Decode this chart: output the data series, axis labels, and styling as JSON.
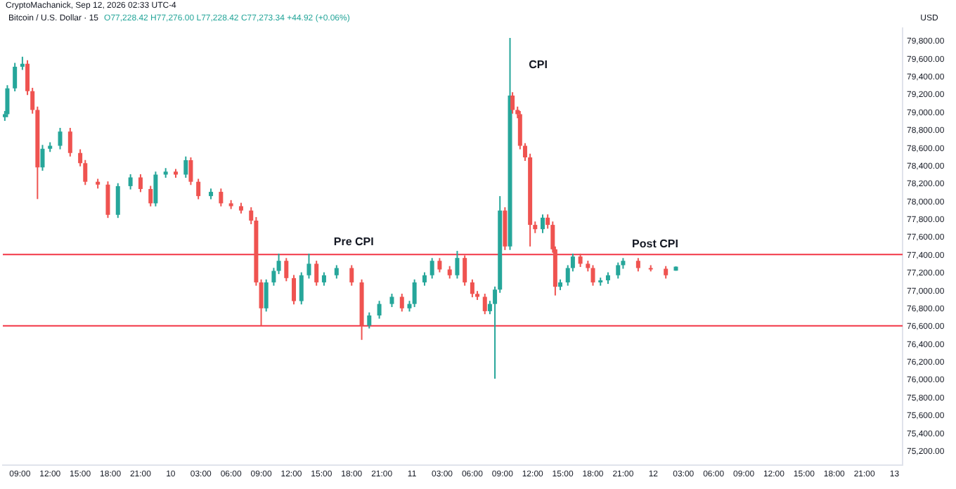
{
  "chart_data": {
    "type": "candlestick",
    "title": "Bitcoin / U.S. Dollar · 15",
    "ylabel": "USD",
    "annotations": [
      "CryptoMachanick, Sep 12, 2026 02:33 UTC-4",
      "O77,228.42 H77,276.00 L77,228.42 C77,273.34 +44.92 (+0.06%)",
      "Pre CPI",
      "CPI",
      "Post CPI"
    ],
    "x": [
      "2026-09-09T07:30",
      "2026-09-09T07:45",
      "2026-09-09T08:30",
      "2026-09-09T09:15",
      "2026-09-09T09:45",
      "2026-09-09T10:15",
      "2026-09-09T10:45",
      "2026-09-09T11:15",
      "2026-09-09T12:00",
      "2026-09-09T13:00",
      "2026-09-09T14:00",
      "2026-09-09T15:00",
      "2026-09-09T15:30",
      "2026-09-09T16:45",
      "2026-09-09T17:45",
      "2026-09-09T18:45",
      "2026-09-09T20:00",
      "2026-09-09T21:00",
      "2026-09-09T22:00",
      "2026-09-09T22:30",
      "2026-09-09T23:30",
      "2026-09-10T00:30",
      "2026-09-10T01:30",
      "2026-09-10T02:00",
      "2026-09-10T02:45",
      "2026-09-10T04:00",
      "2026-09-10T05:00",
      "2026-09-10T06:00",
      "2026-09-10T07:00",
      "2026-09-10T08:00",
      "2026-09-10T08:30",
      "2026-09-10T09:00",
      "2026-09-10T09:30",
      "2026-09-10T10:15",
      "2026-09-10T10:45",
      "2026-09-10T11:30",
      "2026-09-10T12:15",
      "2026-09-10T13:00",
      "2026-09-10T13:45",
      "2026-09-10T14:30",
      "2026-09-10T15:15",
      "2026-09-10T16:30",
      "2026-09-10T18:00",
      "2026-09-10T19:00",
      "2026-09-10T19:45",
      "2026-09-10T20:45",
      "2026-09-10T22:00",
      "2026-09-10T23:00",
      "2026-09-10T23:45",
      "2026-09-11T00:15",
      "2026-09-11T01:15",
      "2026-09-11T02:00",
      "2026-09-11T02:45",
      "2026-09-11T03:45",
      "2026-09-11T04:30",
      "2026-09-11T05:15",
      "2026-09-11T06:00",
      "2026-09-11T06:30",
      "2026-09-11T07:15",
      "2026-09-11T07:45",
      "2026-09-11T08:15",
      "2026-09-11T08:45",
      "2026-09-11T09:15",
      "2026-09-11T09:45",
      "2026-09-11T10:00",
      "2026-09-11T10:30",
      "2026-09-11T10:45",
      "2026-09-11T11:15",
      "2026-09-11T11:45",
      "2026-09-11T12:15",
      "2026-09-11T13:00",
      "2026-09-11T13:30",
      "2026-09-11T14:00",
      "2026-09-11T14:15",
      "2026-09-11T14:45",
      "2026-09-11T15:30",
      "2026-09-11T16:00",
      "2026-09-11T16:45",
      "2026-09-11T17:30",
      "2026-09-11T18:00",
      "2026-09-11T18:45",
      "2026-09-11T19:30",
      "2026-09-11T20:30",
      "2026-09-11T21:00",
      "2026-09-11T22:30",
      "2026-09-11T23:45",
      "2026-09-12T01:15",
      "2026-09-12T02:15"
    ],
    "ohlc": [
      [
        78950,
        79020,
        78910,
        78984
      ],
      [
        78984,
        79310,
        78950,
        79274
      ],
      [
        79274,
        79560,
        79240,
        79516
      ],
      [
        79516,
        79629,
        79480,
        79550
      ],
      [
        79550,
        79590,
        79200,
        79242
      ],
      [
        79242,
        79280,
        78990,
        79032
      ],
      [
        79032,
        79070,
        78032,
        78387
      ],
      [
        78387,
        78640,
        78350,
        78597
      ],
      [
        78597,
        78670,
        78560,
        78629
      ],
      [
        78629,
        78830,
        78590,
        78790
      ],
      [
        78790,
        78830,
        78510,
        78548
      ],
      [
        78548,
        78590,
        78400,
        78435
      ],
      [
        78435,
        78470,
        78190,
        78226
      ],
      [
        78226,
        78260,
        78150,
        78194
      ],
      [
        78194,
        78230,
        77820,
        77855
      ],
      [
        77855,
        78210,
        77820,
        78177
      ],
      [
        78177,
        78310,
        78140,
        78274
      ],
      [
        78274,
        78310,
        78110,
        78145
      ],
      [
        78145,
        78180,
        77950,
        77984
      ],
      [
        77984,
        78340,
        77950,
        78306
      ],
      [
        78306,
        78380,
        78270,
        78339
      ],
      [
        78339,
        78370,
        78270,
        78306
      ],
      [
        78306,
        78510,
        78270,
        78468
      ],
      [
        78468,
        78500,
        78190,
        78226
      ],
      [
        78226,
        78260,
        78030,
        78065
      ],
      [
        78065,
        78150,
        78030,
        78113
      ],
      [
        78113,
        78150,
        77950,
        77984
      ],
      [
        77984,
        78020,
        77920,
        77952
      ],
      [
        77952,
        77990,
        77870,
        77903
      ],
      [
        77903,
        77940,
        77750,
        77790
      ],
      [
        77790,
        77830,
        77060,
        77097
      ],
      [
        77097,
        77130,
        76613,
        76806
      ],
      [
        76806,
        77130,
        76770,
        77097
      ],
      [
        77097,
        77260,
        77060,
        77226
      ],
      [
        77226,
        77420,
        77190,
        77339
      ],
      [
        77339,
        77370,
        77110,
        77145
      ],
      [
        77145,
        77180,
        76850,
        76887
      ],
      [
        76887,
        77210,
        76850,
        77177
      ],
      [
        77177,
        77420,
        77140,
        77306
      ],
      [
        77306,
        77340,
        77060,
        77097
      ],
      [
        77097,
        77210,
        77060,
        77177
      ],
      [
        77177,
        77290,
        77140,
        77258
      ],
      [
        77258,
        77290,
        77060,
        77097
      ],
      [
        77097,
        77130,
        76452,
        76613
      ],
      [
        76613,
        76760,
        76580,
        76726
      ],
      [
        76726,
        76890,
        76690,
        76855
      ],
      [
        76855,
        76970,
        76820,
        76935
      ],
      [
        76935,
        76970,
        76770,
        76806
      ],
      [
        76806,
        76890,
        76770,
        76855
      ],
      [
        76855,
        77130,
        76820,
        77097
      ],
      [
        77097,
        77210,
        77060,
        77177
      ],
      [
        77177,
        77370,
        77140,
        77339
      ],
      [
        77339,
        77370,
        77210,
        77242
      ],
      [
        77242,
        77280,
        77140,
        77177
      ],
      [
        77177,
        77450,
        77140,
        77371
      ],
      [
        77371,
        77400,
        77060,
        77097
      ],
      [
        77097,
        77130,
        76930,
        76968
      ],
      [
        76968,
        77000,
        76900,
        76935
      ],
      [
        76935,
        76970,
        76740,
        76774
      ],
      [
        76774,
        76890,
        76740,
        76855
      ],
      [
        76855,
        77050,
        76016,
        77016
      ],
      [
        77016,
        78065,
        76980,
        77903
      ],
      [
        77903,
        77940,
        77460,
        77500
      ],
      [
        77500,
        79839,
        77460,
        79194
      ],
      [
        79194,
        79230,
        78990,
        79032
      ],
      [
        79032,
        79070,
        78940,
        78984
      ],
      [
        78984,
        79020,
        78590,
        78629
      ],
      [
        78629,
        78660,
        78460,
        78500
      ],
      [
        78500,
        78540,
        77500,
        77742
      ],
      [
        77742,
        77780,
        77650,
        77694
      ],
      [
        77694,
        77860,
        77650,
        77823
      ],
      [
        77823,
        77860,
        77700,
        77742
      ],
      [
        77742,
        77780,
        77430,
        77468
      ],
      [
        77468,
        77500,
        76950,
        77048
      ],
      [
        77048,
        77130,
        77010,
        77097
      ],
      [
        77097,
        77290,
        77060,
        77258
      ],
      [
        77258,
        77420,
        77220,
        77387
      ],
      [
        77387,
        77420,
        77270,
        77306
      ],
      [
        77306,
        77340,
        77220,
        77258
      ],
      [
        77258,
        77290,
        77060,
        77097
      ],
      [
        77097,
        77150,
        77060,
        77120
      ],
      [
        77120,
        77210,
        77080,
        77177
      ],
      [
        77177,
        77320,
        77140,
        77290
      ],
      [
        77290,
        77370,
        77250,
        77339
      ],
      [
        77339,
        77370,
        77220,
        77258
      ],
      [
        77258,
        77290,
        77220,
        77250
      ],
      [
        77250,
        77280,
        77140,
        77177
      ],
      [
        77228.42,
        77276,
        77228.42,
        77273.34
      ]
    ],
    "xlim": [
      "2026-09-09T07:18",
      "2026-09-13T00:48"
    ],
    "xticks": [
      {
        "value": "2026-09-09T09:00",
        "label": "09:00"
      },
      {
        "value": "2026-09-09T12:00",
        "label": "12:00"
      },
      {
        "value": "2026-09-09T15:00",
        "label": "15:00"
      },
      {
        "value": "2026-09-09T18:00",
        "label": "18:00"
      },
      {
        "value": "2026-09-09T21:00",
        "label": "21:00"
      },
      {
        "value": "2026-09-10",
        "label": "10"
      },
      {
        "value": "2026-09-10T03:00",
        "label": "03:00"
      },
      {
        "value": "2026-09-10T06:00",
        "label": "06:00"
      },
      {
        "value": "2026-09-10T09:00",
        "label": "09:00"
      },
      {
        "value": "2026-09-10T12:00",
        "label": "12:00"
      },
      {
        "value": "2026-09-10T15:00",
        "label": "15:00"
      },
      {
        "value": "2026-09-10T18:00",
        "label": "18:00"
      },
      {
        "value": "2026-09-10T21:00",
        "label": "21:00"
      },
      {
        "value": "2026-09-11",
        "label": "11"
      },
      {
        "value": "2026-09-11T03:00",
        "label": "03:00"
      },
      {
        "value": "2026-09-11T06:00",
        "label": "06:00"
      },
      {
        "value": "2026-09-11T09:00",
        "label": "09:00"
      },
      {
        "value": "2026-09-11T12:00",
        "label": "12:00"
      },
      {
        "value": "2026-09-11T15:00",
        "label": "15:00"
      },
      {
        "value": "2026-09-11T18:00",
        "label": "18:00"
      },
      {
        "value": "2026-09-11T21:00",
        "label": "21:00"
      },
      {
        "value": "2026-09-12",
        "label": "12"
      },
      {
        "value": "2026-09-12T03:00",
        "label": "03:00"
      },
      {
        "value": "2026-09-12T06:00",
        "label": "06:00"
      },
      {
        "value": "2026-09-12T09:00",
        "label": "09:00"
      },
      {
        "value": "2026-09-12T12:00",
        "label": "12:00"
      },
      {
        "value": "2026-09-12T15:00",
        "label": "15:00"
      },
      {
        "value": "2026-09-12T18:00",
        "label": "18:00"
      },
      {
        "value": "2026-09-12T21:00",
        "label": "21:00"
      },
      {
        "value": "2026-09-13",
        "label": "13"
      }
    ],
    "ylim": [
      75050,
      79950
    ],
    "yticks": [
      {
        "value": 75200,
        "label": "75,200.00"
      },
      {
        "value": 75400,
        "label": "75,400.00"
      },
      {
        "value": 75600,
        "label": "75,600.00"
      },
      {
        "value": 75800,
        "label": "75,800.00"
      },
      {
        "value": 76000,
        "label": "76,000.00"
      },
      {
        "value": 76200,
        "label": "76,200.00"
      },
      {
        "value": 76400,
        "label": "76,400.00"
      },
      {
        "value": 76600,
        "label": "76,600.00"
      },
      {
        "value": 76800,
        "label": "76,800.00"
      },
      {
        "value": 77000,
        "label": "77,000.00"
      },
      {
        "value": 77200,
        "label": "77,200.00"
      },
      {
        "value": 77400,
        "label": "77,400.00"
      },
      {
        "value": 77600,
        "label": "77,600.00"
      },
      {
        "value": 77800,
        "label": "77,800.00"
      },
      {
        "value": 78000,
        "label": "78,000.00"
      },
      {
        "value": 78200,
        "label": "78,200.00"
      },
      {
        "value": 78400,
        "label": "78,400.00"
      },
      {
        "value": 78600,
        "label": "78,600.00"
      },
      {
        "value": 78800,
        "label": "78,800.00"
      },
      {
        "value": 79000,
        "label": "79,000.00"
      },
      {
        "value": 79200,
        "label": "79,200.00"
      },
      {
        "value": 79400,
        "label": "79,400.00"
      },
      {
        "value": 79600,
        "label": "79,600.00"
      },
      {
        "value": 79800,
        "label": "79,800.00"
      }
    ],
    "ref_lines": [
      {
        "axis": "y",
        "value": 77410,
        "color": "#f23645"
      },
      {
        "axis": "y",
        "value": 76610,
        "color": "#f23645"
      }
    ],
    "grid": false,
    "legend": false
  }
}
